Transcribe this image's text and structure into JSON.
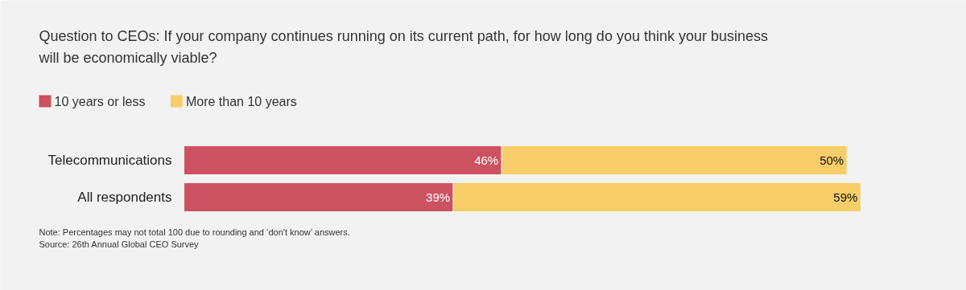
{
  "chart_data": {
    "type": "bar",
    "orientation": "horizontal",
    "stacked": true,
    "title": "Question to CEOs: If your company continues running on its current path, for how long do you think your business will be economically viable?",
    "categories": [
      "Telecommunications",
      "All respondents"
    ],
    "series": [
      {
        "name": "10 years or less",
        "color": "#cc5262",
        "values": [
          46,
          39
        ],
        "value_labels": [
          "46%",
          "39%"
        ]
      },
      {
        "name": "More than 10 years",
        "color": "#f7cd69",
        "values": [
          50,
          59
        ],
        "value_labels": [
          "50%",
          "59%"
        ]
      }
    ],
    "legend": "top left",
    "annotations": [
      "Note: Percentages may not total 100 due to rounding and ‘don't know’ answers.",
      "Source: 26th Annual Global CEO Survey"
    ]
  }
}
